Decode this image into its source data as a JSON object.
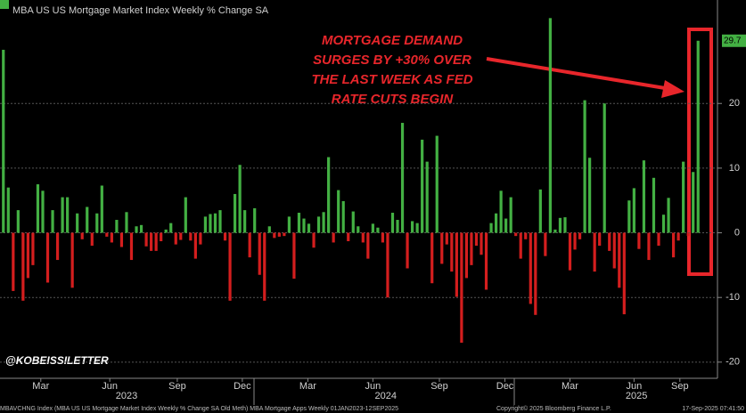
{
  "chart_data": {
    "type": "bar",
    "title": "MBA US US Mortgage Market Index Weekly % Change SA",
    "annotation": [
      "MORTGAGE DEMAND",
      "SURGES BY +30% OVER",
      "THE LAST WEEK AS FED",
      "RATE CUTS BEGIN"
    ],
    "watermark": "@KOBEISSILETTER",
    "footer_left": "MBAVCHNG Index (MBA US US Mortgage Market Index Weekly % Change SA Old Meth) MBA Mortgage Apps  Weekly 01JAN2023-12SEP2025",
    "footer_mid": "Copyright© 2025 Bloomberg Finance L.P.",
    "footer_right": "17-Sep-2025 07:41:50",
    "positive_color": "#43b043",
    "negative_color": "#d41e1e",
    "categories": [
      null,
      null,
      null,
      null,
      null,
      null,
      null,
      null,
      null,
      null,
      null,
      null,
      null,
      null,
      null,
      null,
      null,
      null,
      null,
      null,
      null,
      null,
      null,
      null,
      null,
      null,
      null,
      null,
      null,
      null,
      null,
      null,
      null,
      null,
      null,
      null,
      null,
      null,
      null,
      null,
      null,
      null,
      null,
      null,
      null,
      null,
      null,
      null,
      null,
      null,
      null,
      null,
      null,
      null,
      null,
      null,
      null,
      null,
      null,
      null,
      null,
      null,
      null,
      null,
      null,
      null,
      null,
      null,
      null,
      null,
      null,
      null,
      null,
      null,
      null,
      null,
      null,
      null,
      null,
      null,
      null,
      null,
      null,
      null,
      null,
      null,
      null,
      null,
      null,
      null,
      null,
      null,
      null,
      null,
      null,
      null,
      null,
      null,
      null,
      null,
      null,
      null,
      null,
      null,
      null,
      null,
      null,
      null,
      null,
      null,
      null,
      null,
      null,
      null,
      null,
      null,
      null,
      null,
      null,
      null,
      null,
      null,
      null,
      null,
      null,
      null,
      null,
      null,
      null,
      null,
      null,
      null,
      null,
      null,
      null,
      null,
      null,
      null,
      null,
      null,
      null,
      null
    ],
    "values": [
      28.3,
      7.0,
      -9.0,
      3.5,
      -10.5,
      -7.0,
      -5.0,
      7.5,
      6.5,
      -7.7,
      3.5,
      -4.2,
      5.5,
      5.5,
      -8.5,
      3.0,
      -1.0,
      4.0,
      -2.0,
      3.0,
      7.3,
      -0.6,
      -1.5,
      2.0,
      -2.2,
      3.2,
      -4.2,
      1.0,
      1.2,
      -2.1,
      -2.8,
      -2.8,
      -1.3,
      0.5,
      1.5,
      -1.8,
      -1.1,
      5.5,
      -1.2,
      -4.0,
      -1.8,
      2.5,
      2.9,
      3.0,
      3.5,
      -1.2,
      -10.5,
      6.0,
      10.5,
      3.5,
      -3.8,
      3.8,
      -6.5,
      -10.5,
      1.0,
      -0.8,
      -0.6,
      -0.5,
      2.5,
      -7.1,
      3.1,
      2.2,
      1.4,
      -2.3,
      2.5,
      3.2,
      11.7,
      -1.5,
      6.6,
      4.9,
      -1.3,
      3.3,
      1.0,
      -1.5,
      -4.0,
      1.4,
      0.8,
      -1.5,
      -10.0,
      3.1,
      2.0,
      17.0,
      -5.5,
      1.8,
      1.5,
      14.4,
      11.0,
      -7.8,
      15.0,
      -4.8,
      -1.8,
      -6.0,
      -9.9,
      -17.0,
      -7.0,
      -5.0,
      -2.0,
      -3.4,
      -8.8,
      1.5,
      3.0,
      6.5,
      2.2,
      5.5,
      -0.5,
      -4.0,
      -1.0,
      -11.0,
      -12.7,
      6.7,
      -3.6,
      33.2,
      0.5,
      2.3,
      2.4,
      -5.8,
      -2.6,
      -1.0,
      20.5,
      11.6,
      -6.0,
      -2.0,
      20.0,
      -2.8,
      -5.5,
      -8.5,
      -12.6,
      5.0,
      6.9,
      -2.5,
      11.2,
      -4.2,
      8.5,
      -2.0,
      2.8,
      5.4,
      -3.8,
      -1.2,
      11.0,
      -0.5,
      9.4,
      29.7
    ],
    "ylim": [
      -22.5,
      36
    ],
    "yticks": [
      -20,
      -10,
      0,
      10,
      20
    ],
    "grid": true,
    "xticks": [
      {
        "value": 7.6,
        "label": "Mar"
      },
      {
        "value": 21.6,
        "label": "Jun"
      },
      {
        "value": 35.3,
        "label": "Sep"
      },
      {
        "value": 48.5,
        "label": "Dec"
      },
      {
        "value": 61.8,
        "label": "Mar"
      },
      {
        "value": 75,
        "label": "Jun"
      },
      {
        "value": 88.5,
        "label": "Sep"
      },
      {
        "value": 101.8,
        "label": "Dec"
      },
      {
        "value": 115,
        "label": "Mar"
      },
      {
        "value": 128,
        "label": "Jun"
      },
      {
        "value": 137.3,
        "label": "Sep"
      }
    ],
    "year_ticks": [
      {
        "value": 25,
        "label": "2023"
      },
      {
        "value": 77.6,
        "label": "2024"
      },
      {
        "value": 128.5,
        "label": "2025"
      }
    ]
  }
}
